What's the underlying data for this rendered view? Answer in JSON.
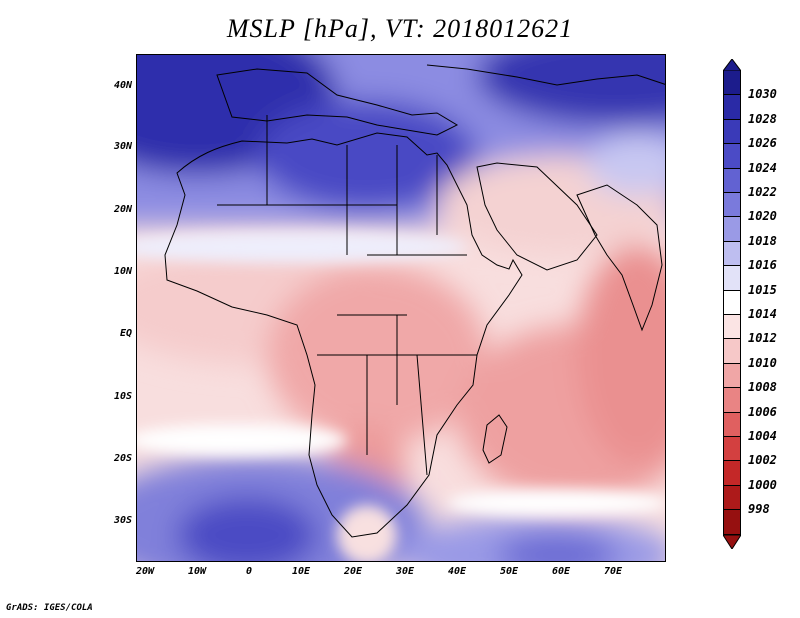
{
  "title": "MSLP [hPa], VT: 2018012621",
  "credit": "GrADS: IGES/COLA",
  "lat_labels": [
    "40N",
    "30N",
    "20N",
    "10N",
    "EQ",
    "10S",
    "20S",
    "30S"
  ],
  "lon_labels": [
    "20W",
    "10W",
    "0",
    "10E",
    "20E",
    "30E",
    "40E",
    "50E",
    "60E",
    "70E"
  ],
  "colorbar": {
    "levels": [
      "1030",
      "1028",
      "1026",
      "1024",
      "1022",
      "1020",
      "1018",
      "1016",
      "1015",
      "1014",
      "1012",
      "1010",
      "1008",
      "1006",
      "1004",
      "1002",
      "1000",
      "998"
    ],
    "colors": [
      "#1c1c8c",
      "#2a2aa6",
      "#3a3ab8",
      "#4b4bc6",
      "#6262d2",
      "#7a7adc",
      "#9a9ae6",
      "#bebef0",
      "#e2e2f8",
      "#ffffff",
      "#fbe4e4",
      "#f6c8c8",
      "#f0a6a6",
      "#e98484",
      "#e06060",
      "#d34040",
      "#c42828",
      "#ad1a1a",
      "#961010"
    ]
  }
}
